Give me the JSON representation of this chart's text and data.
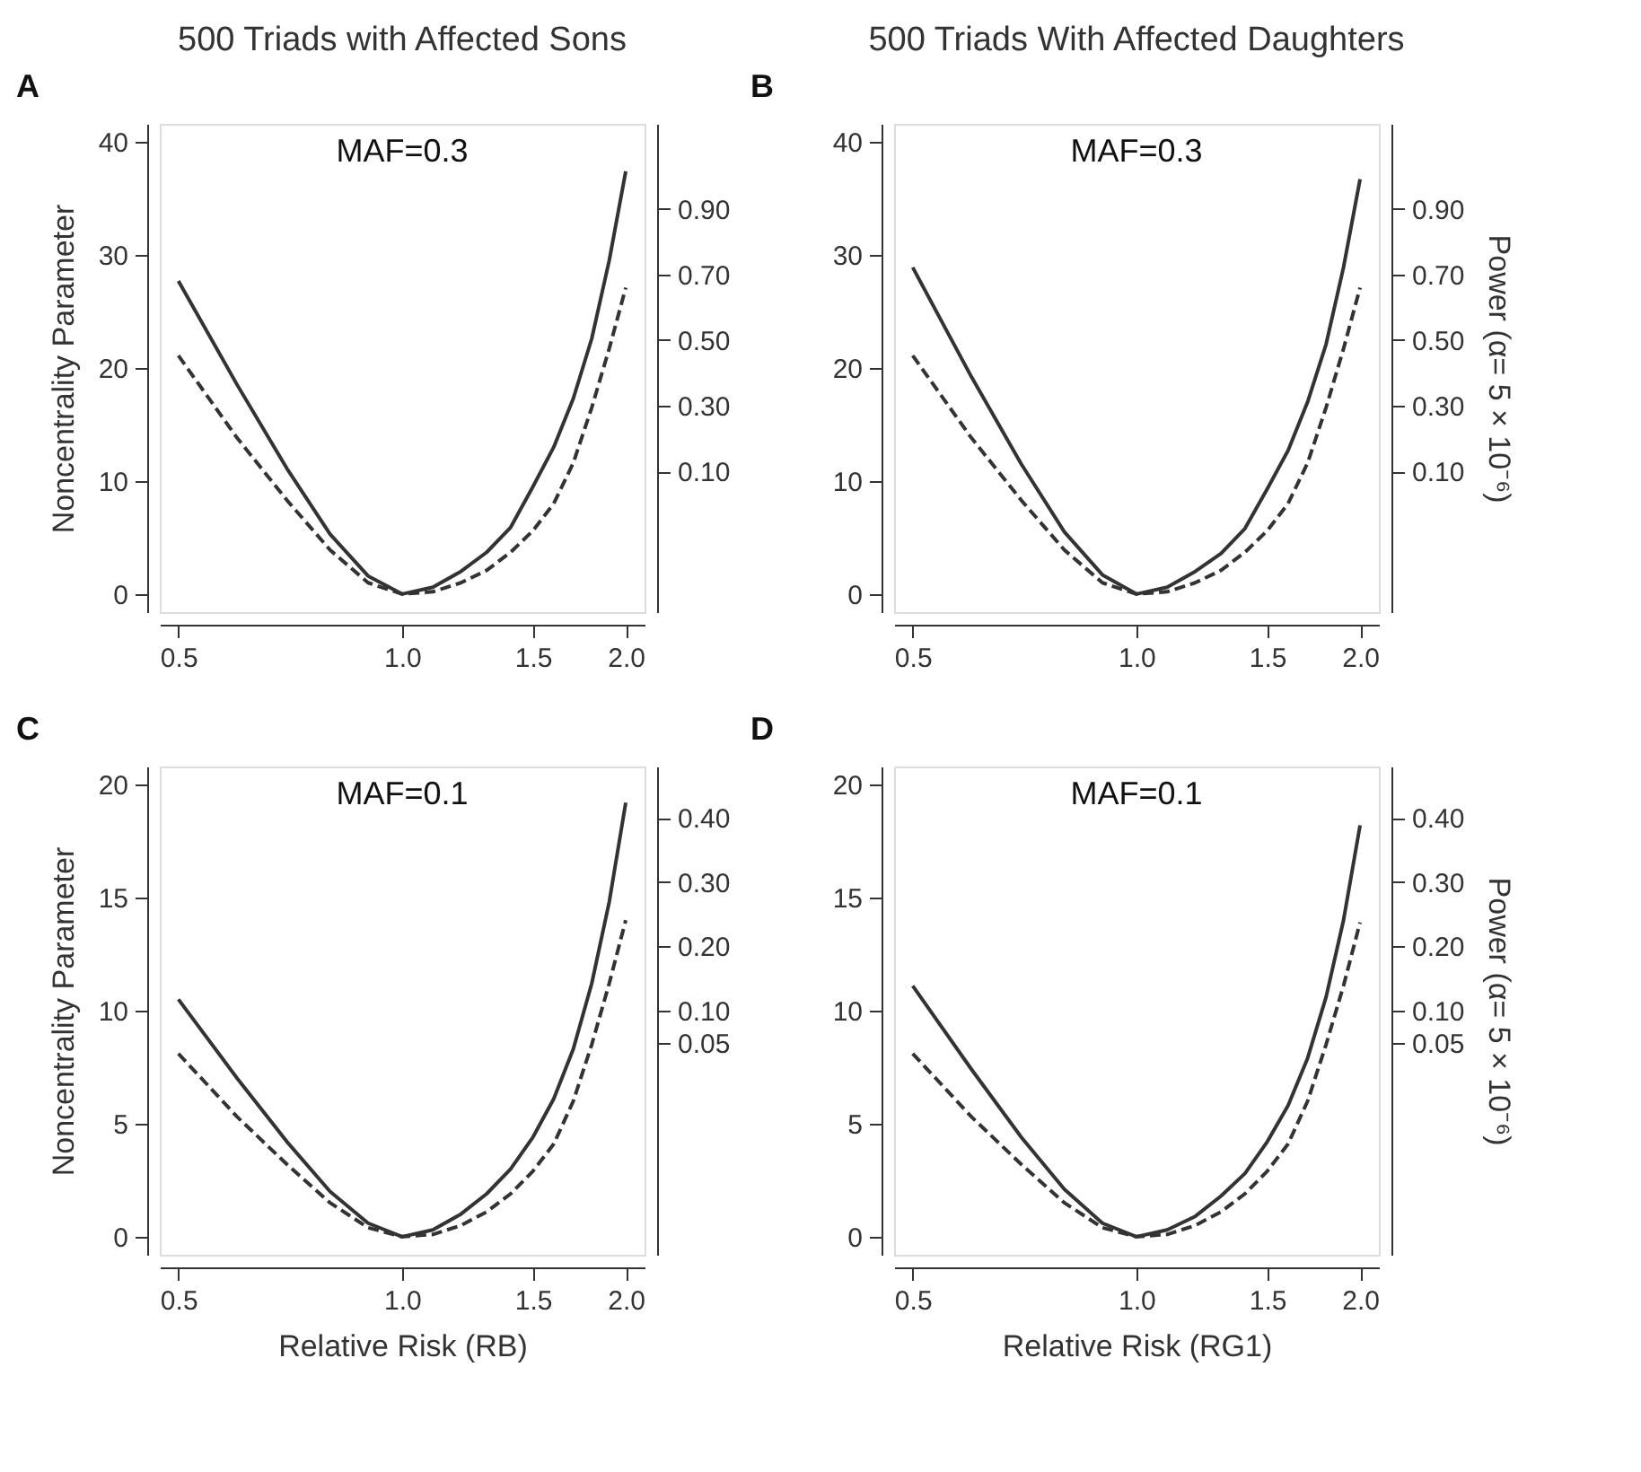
{
  "chart_data": [
    {
      "type": "line",
      "title": "500 Triads with Affected Sons",
      "ylabel": "Noncentrality Parameter",
      "annotations": [
        "A",
        "MAF=0.3"
      ],
      "log": "x",
      "grid": false,
      "x": [
        0.5,
        0.6,
        0.7,
        0.8,
        0.9,
        1.0,
        1.1,
        1.2,
        1.3,
        1.4,
        1.5,
        1.6,
        1.7,
        1.8,
        1.9,
        2.0
      ],
      "xlim": [
        0.472,
        2.12
      ],
      "xticks": [
        {
          "value": 0.5,
          "label": "0.5"
        },
        {
          "value": 1,
          "label": "1.0"
        },
        {
          "value": 1.5,
          "label": "1.5"
        },
        {
          "value": 2,
          "label": "2.0"
        }
      ],
      "ylim": [
        -1.6,
        41.6
      ],
      "yticks": [
        0,
        10,
        20,
        30,
        40
      ],
      "y2lim": [
        -0.33,
        1.16
      ],
      "y2ticks": [
        {
          "value": 0.1,
          "label": "0.10"
        },
        {
          "value": 0.3,
          "label": "0.30"
        },
        {
          "value": 0.5,
          "label": "0.50"
        },
        {
          "value": 0.7,
          "label": "0.70"
        },
        {
          "value": 0.9,
          "label": "0.90"
        }
      ],
      "series": [
        {
          "color": "#333333",
          "line_style": "solid",
          "values": [
            27.7,
            18.5,
            11.1,
            5.3,
            1.6,
            0,
            0.6,
            2.0,
            3.7,
            5.9,
            9.5,
            13.0,
            17.3,
            22.6,
            29.5,
            37.4
          ]
        },
        {
          "color": "#333333",
          "line_style": "dashed",
          "values": [
            21.1,
            13.8,
            8.3,
            3.9,
            1.0,
            0,
            0.2,
            1.0,
            2.1,
            3.7,
            5.6,
            8.0,
            11.6,
            16.5,
            21.7,
            27.1
          ]
        }
      ]
    },
    {
      "type": "line",
      "title": "500 Triads With Affected Daughters",
      "y2label": "Power (α= 5 × 10⁻⁶)",
      "annotations": [
        "B",
        "MAF=0.3"
      ],
      "log": "x",
      "grid": false,
      "x": [
        0.5,
        0.6,
        0.7,
        0.8,
        0.9,
        1.0,
        1.1,
        1.2,
        1.3,
        1.4,
        1.5,
        1.6,
        1.7,
        1.8,
        1.9,
        2.0
      ],
      "xlim": [
        0.472,
        2.12
      ],
      "xticks": [
        {
          "value": 0.5,
          "label": "0.5"
        },
        {
          "value": 1,
          "label": "1.0"
        },
        {
          "value": 1.5,
          "label": "1.5"
        },
        {
          "value": 2,
          "label": "2.0"
        }
      ],
      "ylim": [
        -1.6,
        41.6
      ],
      "yticks": [
        0,
        10,
        20,
        30,
        40
      ],
      "y2lim": [
        -0.33,
        1.16
      ],
      "y2ticks": [
        {
          "value": 0.1,
          "label": "0.10"
        },
        {
          "value": 0.3,
          "label": "0.30"
        },
        {
          "value": 0.5,
          "label": "0.50"
        },
        {
          "value": 0.7,
          "label": "0.70"
        },
        {
          "value": 0.9,
          "label": "0.90"
        }
      ],
      "series": [
        {
          "color": "#333333",
          "line_style": "solid",
          "values": [
            28.9,
            19.2,
            11.5,
            5.5,
            1.7,
            0,
            0.6,
            2.0,
            3.6,
            5.8,
            9.3,
            12.7,
            17.0,
            22.1,
            28.9,
            36.7
          ]
        },
        {
          "color": "#333333",
          "line_style": "dashed",
          "values": [
            21.1,
            13.8,
            8.3,
            3.9,
            1.0,
            0,
            0.2,
            1.0,
            2.1,
            3.7,
            5.6,
            8.0,
            11.6,
            16.5,
            21.7,
            27.1
          ]
        }
      ]
    },
    {
      "type": "line",
      "xlabel": "Relative Risk (RB)",
      "ylabel": "Noncentrality Parameter",
      "annotations": [
        "C",
        "MAF=0.1"
      ],
      "log": "x",
      "grid": false,
      "x": [
        0.5,
        0.6,
        0.7,
        0.8,
        0.9,
        1.0,
        1.1,
        1.2,
        1.3,
        1.4,
        1.5,
        1.6,
        1.7,
        1.8,
        1.9,
        2.0
      ],
      "xlim": [
        0.472,
        2.12
      ],
      "xticks": [
        {
          "value": 0.5,
          "label": "0.5"
        },
        {
          "value": 1,
          "label": "1.0"
        },
        {
          "value": 1.5,
          "label": "1.5"
        },
        {
          "value": 2,
          "label": "2.0"
        }
      ],
      "ylim": [
        -0.8,
        20.8
      ],
      "yticks": [
        0,
        5,
        10,
        15,
        20
      ],
      "y2lim": [
        -0.28,
        0.48
      ],
      "y2ticks": [
        {
          "value": 0.05,
          "label": "0.05"
        },
        {
          "value": 0.1,
          "label": "0.10"
        },
        {
          "value": 0.2,
          "label": "0.20"
        },
        {
          "value": 0.3,
          "label": "0.30"
        },
        {
          "value": 0.4,
          "label": "0.40"
        }
      ],
      "series": [
        {
          "color": "#333333",
          "line_style": "solid",
          "values": [
            10.5,
            7.0,
            4.2,
            2.0,
            0.6,
            0,
            0.3,
            1.0,
            1.9,
            3.0,
            4.4,
            6.1,
            8.3,
            11.2,
            14.8,
            19.2
          ]
        },
        {
          "color": "#333333",
          "line_style": "dashed",
          "values": [
            8.1,
            5.3,
            3.2,
            1.5,
            0.4,
            0,
            0.1,
            0.5,
            1.1,
            1.9,
            2.9,
            4.1,
            6.0,
            8.5,
            11.2,
            14.0
          ]
        }
      ]
    },
    {
      "type": "line",
      "xlabel": "Relative Risk (RG1)",
      "y2label": "Power (α= 5 × 10⁻⁶)",
      "annotations": [
        "D",
        "MAF=0.1"
      ],
      "log": "x",
      "grid": false,
      "x": [
        0.5,
        0.6,
        0.7,
        0.8,
        0.9,
        1.0,
        1.1,
        1.2,
        1.3,
        1.4,
        1.5,
        1.6,
        1.7,
        1.8,
        1.9,
        2.0
      ],
      "xlim": [
        0.472,
        2.12
      ],
      "xticks": [
        {
          "value": 0.5,
          "label": "0.5"
        },
        {
          "value": 1,
          "label": "1.0"
        },
        {
          "value": 1.5,
          "label": "1.5"
        },
        {
          "value": 2,
          "label": "2.0"
        }
      ],
      "ylim": [
        -0.8,
        20.8
      ],
      "yticks": [
        0,
        5,
        10,
        15,
        20
      ],
      "y2lim": [
        -0.28,
        0.48
      ],
      "y2ticks": [
        {
          "value": 0.05,
          "label": "0.05"
        },
        {
          "value": 0.1,
          "label": "0.10"
        },
        {
          "value": 0.2,
          "label": "0.20"
        },
        {
          "value": 0.3,
          "label": "0.30"
        },
        {
          "value": 0.4,
          "label": "0.40"
        }
      ],
      "series": [
        {
          "color": "#333333",
          "line_style": "solid",
          "values": [
            11.1,
            7.4,
            4.4,
            2.1,
            0.6,
            0,
            0.3,
            0.9,
            1.8,
            2.8,
            4.2,
            5.8,
            7.9,
            10.6,
            14.0,
            18.2
          ]
        },
        {
          "color": "#333333",
          "line_style": "dashed",
          "values": [
            8.1,
            5.3,
            3.2,
            1.5,
            0.4,
            0,
            0.1,
            0.5,
            1.1,
            1.9,
            2.9,
            4.1,
            6.0,
            8.5,
            11.1,
            13.9
          ]
        }
      ]
    }
  ]
}
